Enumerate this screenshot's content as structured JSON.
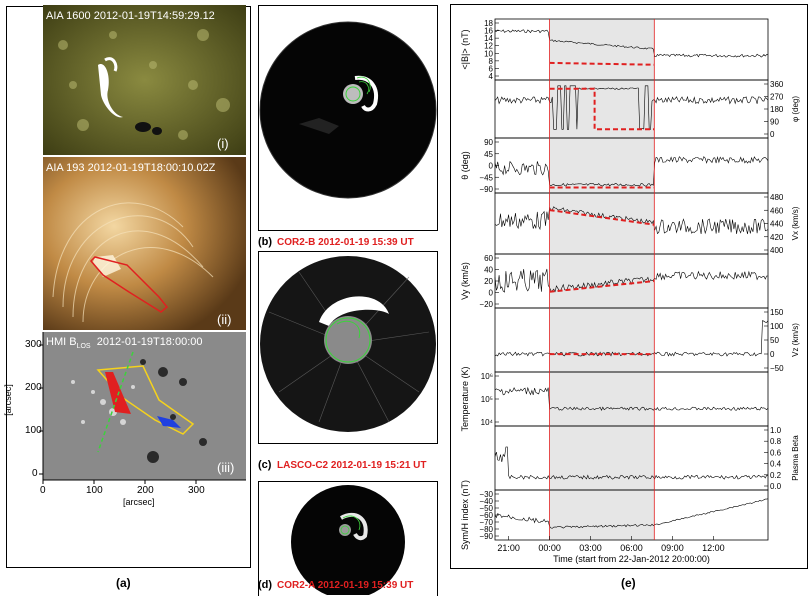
{
  "panel_a": {
    "img1": {
      "title": "AIA 1600 2012-01-19T14:59:29.12",
      "roman": "(i)"
    },
    "img2": {
      "title": "AIA 193 2012-01-19T18:00:10.02Z",
      "roman": "(ii)"
    },
    "img3": {
      "title_prefix": "HMI B",
      "title_sub": "LOS",
      "title_time": "2012-01-19T18:00:00",
      "roman": "(iii)"
    },
    "ylabel": "[arcsec]",
    "xlabel": "[arcsec]",
    "yticks": [
      "300",
      "200",
      "100",
      "0"
    ],
    "xticks": [
      "0",
      "100",
      "200",
      "300"
    ],
    "label": "(a)"
  },
  "panel_bcd": {
    "b": {
      "letter": "(b)",
      "caption": "COR2-B 2012-01-19 15:39 UT"
    },
    "c": {
      "letter": "(c)",
      "caption": "LASCO-C2  2012-01-19 15:21 UT"
    },
    "d": {
      "letter": "(d)",
      "caption": "COR2-A 2012-01-19 15:39 UT"
    }
  },
  "panel_e": {
    "label": "(e)",
    "xlabel": "Time (start from 22-Jan-2012 20:00:00)",
    "xticks": [
      "21:00",
      "00:00",
      "03:00",
      "06:00",
      "09:00",
      "12:00"
    ],
    "rows": [
      {
        "left_label": "<|B|> (nT)",
        "left_ticks": [
          "18",
          "16",
          "14",
          "12",
          "10",
          "8",
          "6",
          "4"
        ],
        "right_label": "",
        "right_ticks": []
      },
      {
        "left_label": "",
        "left_ticks": [],
        "right_label": "φ (deg)",
        "right_ticks": [
          "360",
          "270",
          "180",
          "90",
          "0"
        ]
      },
      {
        "left_label": "θ (deg)",
        "left_ticks": [
          "90",
          "45",
          "0",
          "−45",
          "−90"
        ],
        "right_label": "",
        "right_ticks": []
      },
      {
        "left_label": "",
        "left_ticks": [],
        "right_label": "Vx (km/s)",
        "right_ticks": [
          "480",
          "460",
          "440",
          "420",
          "400"
        ]
      },
      {
        "left_label": "Vy (km/s)",
        "left_ticks": [
          "60",
          "40",
          "20",
          "0",
          "−20"
        ],
        "right_label": "",
        "right_ticks": []
      },
      {
        "left_label": "",
        "left_ticks": [],
        "right_label": "Vz (km/s)",
        "right_ticks": [
          "150",
          "100",
          "50",
          "0",
          "−50"
        ]
      },
      {
        "left_label": "Temperature (K)",
        "left_ticks": [
          "10⁶",
          "10⁵",
          "10⁴"
        ],
        "right_label": "",
        "right_ticks": []
      },
      {
        "left_label": "",
        "left_ticks": [],
        "right_label": "Plasma Beta",
        "right_ticks": [
          "1.0",
          "0.8",
          "0.6",
          "0.4",
          "0.2",
          "0.0"
        ]
      },
      {
        "left_label": "Sym/H index (nT)",
        "left_ticks": [
          "−30",
          "−40",
          "−50",
          "−60",
          "−70",
          "−80",
          "−90"
        ],
        "right_label": "",
        "right_ticks": []
      }
    ]
  },
  "colors": {
    "red": "#e02020",
    "shade": "#e6e6e6",
    "green": "#3cd23c"
  }
}
